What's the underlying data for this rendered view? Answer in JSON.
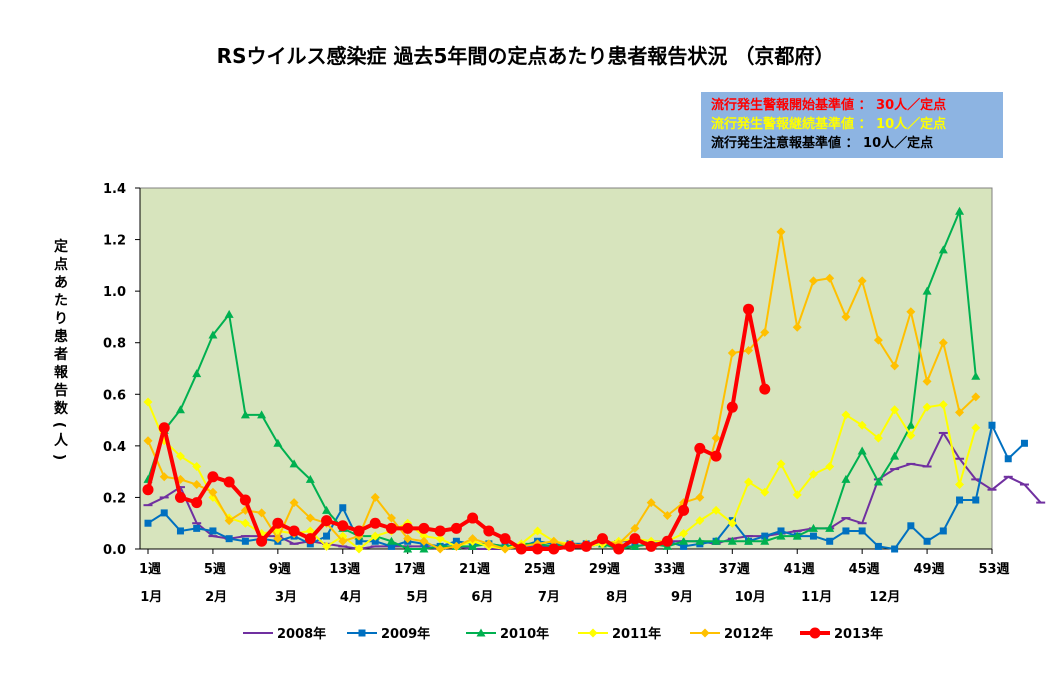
{
  "colors": {
    "plot_bg": "#d7e4bd",
    "box_bg": "#8db4e2"
  },
  "notice": [
    {
      "text": "流行発生警報開始基準値 ： 30人／定点",
      "color": "#ff0000"
    },
    {
      "text": "流行発生警報継続基準値 ： 10人／定点",
      "color": "#ffff00"
    },
    {
      "text": "流行発生注意報基準値 ： 10人／定点",
      "color": "#000000"
    }
  ],
  "chart_data": {
    "type": "line",
    "title": "RSウイルス感染症 過去5年間の定点あたり患者報告状況 （京都府）",
    "ylabel": "定点あたり患者報告数(人)",
    "ylim": [
      0,
      1.4
    ],
    "yticks": [
      "0.0",
      "0.2",
      "0.4",
      "0.6",
      "0.8",
      "1.0",
      "1.2",
      "1.4"
    ],
    "xlim": [
      1,
      53
    ],
    "week_ticks": [
      1,
      5,
      9,
      13,
      17,
      21,
      25,
      29,
      33,
      37,
      41,
      45,
      49,
      53
    ],
    "week_tick_labels": [
      "1週",
      "5週",
      "9週",
      "13週",
      "17週",
      "21週",
      "25週",
      "29週",
      "33週",
      "37週",
      "41週",
      "45週",
      "49週",
      "53週"
    ],
    "months": [
      {
        "label": "1月",
        "week": 1.2
      },
      {
        "label": "2月",
        "week": 5.2
      },
      {
        "label": "3月",
        "week": 9.5
      },
      {
        "label": "4月",
        "week": 13.5
      },
      {
        "label": "5月",
        "week": 17.6
      },
      {
        "label": "6月",
        "week": 21.6
      },
      {
        "label": "7月",
        "week": 25.7
      },
      {
        "label": "8月",
        "week": 29.9
      },
      {
        "label": "9月",
        "week": 33.9
      },
      {
        "label": "10月",
        "week": 38.1
      },
      {
        "label": "11月",
        "week": 42.2
      },
      {
        "label": "12月",
        "week": 46.4
      }
    ],
    "grid": false,
    "legend_position": "bottom",
    "series": [
      {
        "name": "2008年",
        "color": "#7030a0",
        "marker": "dash",
        "width": 2,
        "values": [
          0.17,
          0.2,
          0.24,
          0.1,
          0.05,
          0.04,
          0.05,
          0.05,
          0.05,
          0.02,
          0.03,
          0.02,
          0.01,
          0.0,
          0.01,
          0.01,
          0.01,
          0.01,
          0.0,
          0.01,
          0.0,
          0.0,
          0.0,
          0.01,
          0.01,
          0.01,
          0.02,
          0.02,
          0.02,
          0.03,
          0.03,
          0.03,
          0.03,
          0.03,
          0.03,
          0.02,
          0.04,
          0.05,
          0.05,
          0.06,
          0.07,
          0.08,
          0.08,
          0.12,
          0.1,
          0.27,
          0.31,
          0.33,
          0.32,
          0.45,
          0.35,
          0.27,
          0.23,
          0.28,
          0.25,
          0.18
        ]
      },
      {
        "name": "2009年",
        "color": "#0070c0",
        "marker": "square",
        "width": 2,
        "values": [
          0.1,
          0.14,
          0.07,
          0.08,
          0.07,
          0.04,
          0.03,
          0.04,
          0.03,
          0.05,
          0.02,
          0.05,
          0.16,
          0.03,
          0.03,
          0.01,
          0.03,
          0.02,
          0.01,
          0.03,
          0.02,
          0.02,
          0.01,
          0.01,
          0.03,
          0.02,
          0.02,
          0.02,
          0.02,
          0.01,
          0.01,
          0.02,
          0.03,
          0.01,
          0.02,
          0.03,
          0.11,
          0.03,
          0.05,
          0.07,
          0.05,
          0.05,
          0.03,
          0.07,
          0.07,
          0.01,
          0.0,
          0.09,
          0.03,
          0.07,
          0.19,
          0.19,
          0.48,
          0.35,
          0.41
        ]
      },
      {
        "name": "2010年",
        "color": "#00b050",
        "marker": "triangle",
        "width": 2,
        "values": [
          0.27,
          0.46,
          0.54,
          0.68,
          0.83,
          0.91,
          0.52,
          0.52,
          0.41,
          0.33,
          0.27,
          0.15,
          0.08,
          0.05,
          0.05,
          0.03,
          0.0,
          0.0,
          0.01,
          0.01,
          0.01,
          0.02,
          0.01,
          0.02,
          0.02,
          0.01,
          0.02,
          0.01,
          0.02,
          0.0,
          0.01,
          0.02,
          0.01,
          0.03,
          0.03,
          0.03,
          0.03,
          0.03,
          0.03,
          0.05,
          0.05,
          0.08,
          0.08,
          0.27,
          0.38,
          0.26,
          0.36,
          0.48,
          1.0,
          1.16,
          1.31,
          0.67
        ]
      },
      {
        "name": "2011年",
        "color": "#ffff00",
        "marker": "diamond",
        "width": 2,
        "values": [
          0.57,
          0.42,
          0.36,
          0.32,
          0.2,
          0.12,
          0.1,
          0.06,
          0.07,
          0.06,
          0.07,
          0.01,
          0.05,
          0.0,
          0.05,
          0.07,
          0.1,
          0.05,
          0.04,
          0.01,
          0.03,
          0.01,
          0.0,
          0.02,
          0.07,
          0.03,
          0.02,
          0.01,
          0.02,
          0.03,
          0.04,
          0.03,
          0.03,
          0.06,
          0.11,
          0.15,
          0.1,
          0.26,
          0.22,
          0.33,
          0.21,
          0.29,
          0.32,
          0.52,
          0.48,
          0.43,
          0.54,
          0.44,
          0.55,
          0.56,
          0.25,
          0.47
        ]
      },
      {
        "name": "2012年",
        "color": "#ffc000",
        "marker": "diamond",
        "width": 2,
        "values": [
          0.42,
          0.28,
          0.27,
          0.25,
          0.22,
          0.11,
          0.15,
          0.14,
          0.04,
          0.18,
          0.12,
          0.1,
          0.03,
          0.05,
          0.2,
          0.12,
          0.04,
          0.03,
          0.0,
          0.01,
          0.04,
          0.02,
          0.0,
          0.01,
          0.02,
          0.03,
          0.01,
          0.02,
          0.03,
          0.02,
          0.08,
          0.18,
          0.13,
          0.18,
          0.2,
          0.43,
          0.76,
          0.77,
          0.84,
          1.23,
          0.86,
          1.04,
          1.05,
          0.9,
          1.04,
          0.81,
          0.71,
          0.92,
          0.65,
          0.8,
          0.53,
          0.59
        ]
      },
      {
        "name": "2013年",
        "color": "#ff0000",
        "marker": "circle",
        "width": 4,
        "values": [
          0.23,
          0.47,
          0.2,
          0.18,
          0.28,
          0.26,
          0.19,
          0.03,
          0.1,
          0.07,
          0.04,
          0.11,
          0.09,
          0.07,
          0.1,
          0.08,
          0.08,
          0.08,
          0.07,
          0.08,
          0.12,
          0.07,
          0.04,
          0.0,
          0.0,
          0.0,
          0.01,
          0.01,
          0.04,
          0.0,
          0.04,
          0.01,
          0.03,
          0.15,
          0.39,
          0.36,
          0.55,
          0.93,
          0.62
        ]
      }
    ]
  }
}
